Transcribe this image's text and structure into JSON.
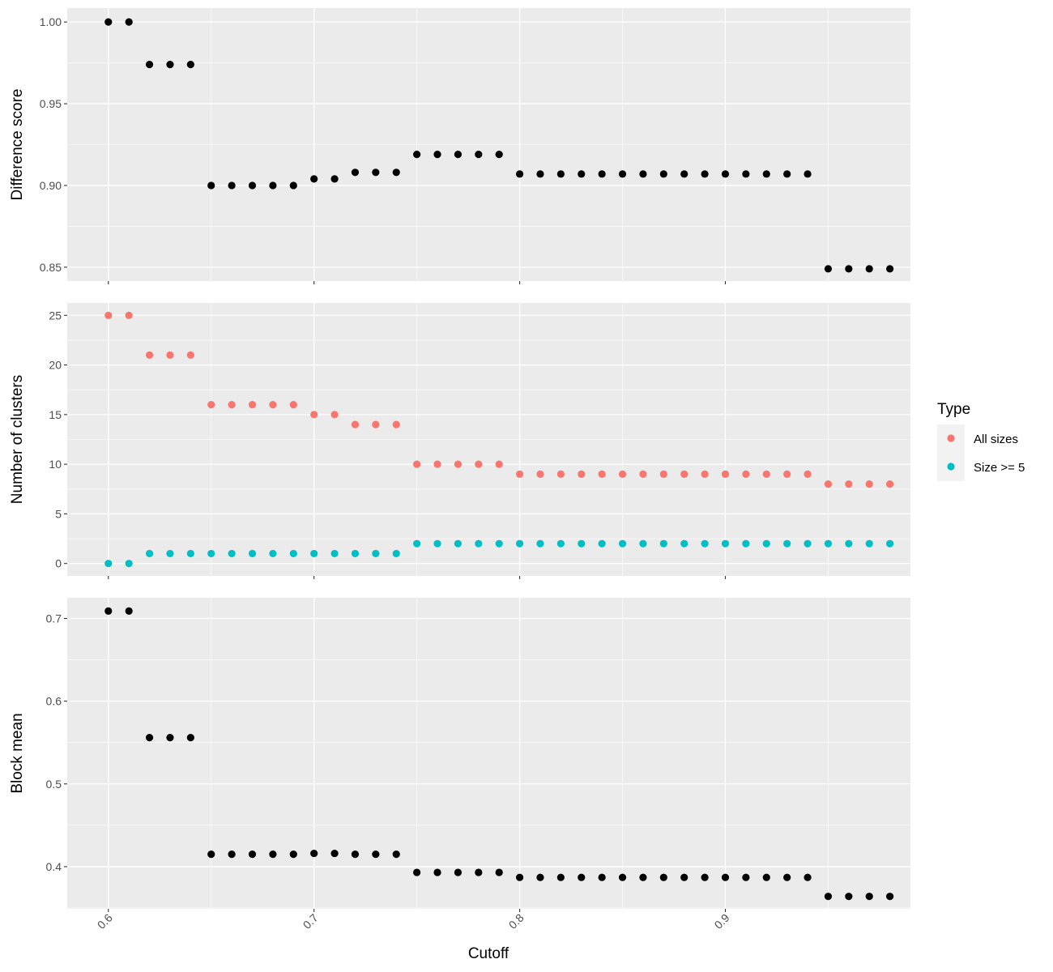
{
  "chart_data": {
    "type": "scatter",
    "x_axis": {
      "label": "Cutoff",
      "lim": [
        0.58,
        0.99
      ],
      "ticks": [
        0.6,
        0.7,
        0.8,
        0.9
      ],
      "tick_labels": [
        "0.6",
        "0.7",
        "0.8",
        "0.9"
      ]
    },
    "x": [
      0.6,
      0.61,
      0.62,
      0.63,
      0.64,
      0.65,
      0.66,
      0.67,
      0.68,
      0.69,
      0.7,
      0.71,
      0.72,
      0.73,
      0.74,
      0.75,
      0.76,
      0.77,
      0.78,
      0.79,
      0.8,
      0.81,
      0.82,
      0.83,
      0.84,
      0.85,
      0.86,
      0.87,
      0.88,
      0.89,
      0.9,
      0.91,
      0.92,
      0.93,
      0.94,
      0.95,
      0.96,
      0.97,
      0.98
    ],
    "panels": [
      {
        "ylabel": "Difference score",
        "ylim": [
          0.8415,
          1.0085
        ],
        "yticks": [
          0.85,
          0.9,
          0.95,
          1.0
        ],
        "ytick_labels": [
          "0.85",
          "0.90",
          "0.95",
          "1.00"
        ],
        "series": [
          {
            "color": "#000000",
            "values": [
              1.0,
              1.0,
              0.974,
              0.974,
              0.974,
              0.9,
              0.9,
              0.9,
              0.9,
              0.9,
              0.904,
              0.904,
              0.908,
              0.908,
              0.908,
              0.919,
              0.919,
              0.919,
              0.919,
              0.919,
              0.907,
              0.907,
              0.907,
              0.907,
              0.907,
              0.907,
              0.907,
              0.907,
              0.907,
              0.907,
              0.907,
              0.907,
              0.907,
              0.907,
              0.907,
              0.849,
              0.849,
              0.849,
              0.849
            ]
          }
        ]
      },
      {
        "ylabel": "Number of clusters",
        "ylim": [
          -1.25,
          26.25
        ],
        "yticks": [
          0,
          5,
          10,
          15,
          20,
          25
        ],
        "ytick_labels": [
          "0",
          "5",
          "10",
          "15",
          "20",
          "25"
        ],
        "series": [
          {
            "name": "All sizes",
            "color": "#F8766D",
            "values": [
              25,
              25,
              21,
              21,
              21,
              16,
              16,
              16,
              16,
              16,
              15,
              15,
              14,
              14,
              14,
              10,
              10,
              10,
              10,
              10,
              9,
              9,
              9,
              9,
              9,
              9,
              9,
              9,
              9,
              9,
              9,
              9,
              9,
              9,
              9,
              8,
              8,
              8,
              8
            ]
          },
          {
            "name": "Size >= 5",
            "color": "#00BFC4",
            "values": [
              0,
              0,
              1,
              1,
              1,
              1,
              1,
              1,
              1,
              1,
              1,
              1,
              1,
              1,
              1,
              2,
              2,
              2,
              2,
              2,
              2,
              2,
              2,
              2,
              2,
              2,
              2,
              2,
              2,
              2,
              2,
              2,
              2,
              2,
              2,
              2,
              2,
              2,
              2
            ]
          }
        ]
      },
      {
        "ylabel": "Block mean",
        "ylim": [
          0.349,
          0.725
        ],
        "yticks": [
          0.4,
          0.5,
          0.6,
          0.7
        ],
        "ytick_labels": [
          "0.4",
          "0.5",
          "0.6",
          "0.7"
        ],
        "series": [
          {
            "color": "#000000",
            "values": [
              0.709,
              0.709,
              0.556,
              0.556,
              0.556,
              0.415,
              0.415,
              0.415,
              0.415,
              0.415,
              0.416,
              0.416,
              0.415,
              0.415,
              0.415,
              0.393,
              0.393,
              0.393,
              0.393,
              0.393,
              0.387,
              0.387,
              0.387,
              0.387,
              0.387,
              0.387,
              0.387,
              0.387,
              0.387,
              0.387,
              0.387,
              0.387,
              0.387,
              0.387,
              0.387,
              0.364,
              0.364,
              0.364,
              0.364
            ]
          }
        ]
      }
    ],
    "legend": {
      "title": "Type",
      "placement": "right",
      "entries": [
        {
          "label": "All sizes",
          "color": "#F8766D"
        },
        {
          "label": "Size >= 5",
          "color": "#00BFC4"
        }
      ]
    },
    "grid": true,
    "panel_background": "#EBEBEB",
    "grid_color": "#FFFFFF"
  }
}
